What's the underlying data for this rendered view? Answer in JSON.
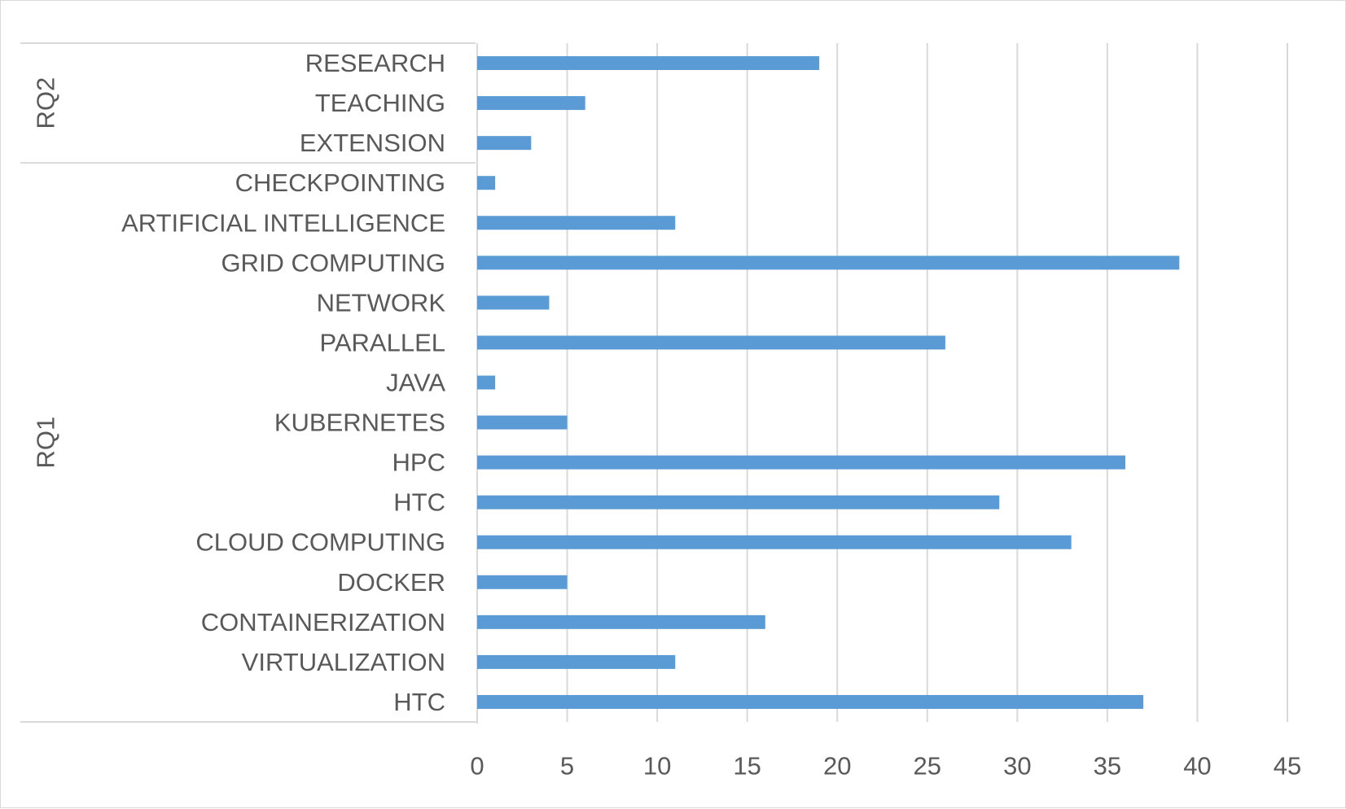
{
  "chart_data": {
    "type": "bar",
    "orientation": "horizontal",
    "groups": [
      {
        "name": "RQ2",
        "categories": [
          "RESEARCH",
          "TEACHING",
          "EXTENSION"
        ],
        "values": [
          19,
          6,
          3
        ]
      },
      {
        "name": "RQ1",
        "categories": [
          "CHECKPOINTING",
          "ARTIFICIAL INTELLIGENCE",
          "GRID COMPUTING",
          "NETWORK",
          "PARALLEL",
          "JAVA",
          "KUBERNETES",
          "HPC",
          "HTC",
          "CLOUD COMPUTING",
          "DOCKER",
          "CONTAINERIZATION",
          "VIRTUALIZATION",
          "HTC"
        ],
        "values": [
          1,
          11,
          39,
          4,
          26,
          1,
          5,
          36,
          29,
          33,
          5,
          16,
          11,
          37
        ]
      }
    ],
    "xlim": [
      0,
      45
    ],
    "xticks": [
      0,
      5,
      10,
      15,
      20,
      25,
      30,
      35,
      40,
      45
    ],
    "grid": true,
    "bar_color": "#5b9bd5",
    "title": "",
    "xlabel": "",
    "ylabel": ""
  }
}
